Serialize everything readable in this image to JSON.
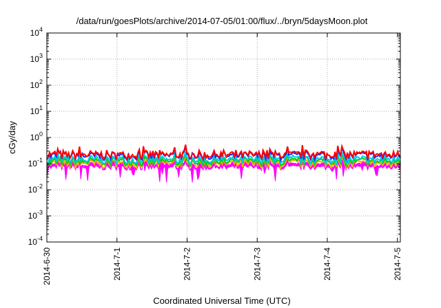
{
  "chart_data": {
    "type": "area",
    "title": "/data/run/goesPlots/archive/2014-07-05/01:00/flux/../bryn/5daysMoon.plot",
    "xlabel": "Coordinated Universal Time (UTC)",
    "ylabel": "cGy/day",
    "y_scale": "log",
    "ylim": [
      0.0001,
      10000
    ],
    "xlim": [
      "2014-06-30",
      "2014-07-05 01:00"
    ],
    "grid": true,
    "legend": "none",
    "x_ticks": [
      "2014-6-30",
      "2014-7-1",
      "2014-7-2",
      "2014-7-3",
      "2014-7-4",
      "2014-7-5"
    ],
    "y_ticks": [
      {
        "base": "10",
        "exp": "-4"
      },
      {
        "base": "10",
        "exp": "-3"
      },
      {
        "base": "10",
        "exp": "-2"
      },
      {
        "base": "10",
        "exp": "-1"
      },
      {
        "base": "10",
        "exp": "0"
      },
      {
        "base": "10",
        "exp": "1"
      },
      {
        "base": "10",
        "exp": "2"
      },
      {
        "base": "10",
        "exp": "3"
      },
      {
        "base": "10",
        "exp": "4"
      }
    ],
    "x_start": "2014-06-30 00:00",
    "x_end": "2014-07-05 01:00",
    "series": [
      {
        "color": "#ff0000",
        "fill": false,
        "median": 0.22
      },
      {
        "color": "#2020ff",
        "fill": false,
        "median": 0.2
      },
      {
        "color": "#00ccdd",
        "fill": false,
        "median": 0.14
      },
      {
        "color": "#00cc00",
        "fill": false,
        "median": 0.12
      },
      {
        "color": "#ffaa00",
        "fill": false,
        "median": 0.1
      },
      {
        "color": "#ff00ff",
        "fill": true,
        "median": 0.085,
        "min": 0.018
      }
    ]
  }
}
